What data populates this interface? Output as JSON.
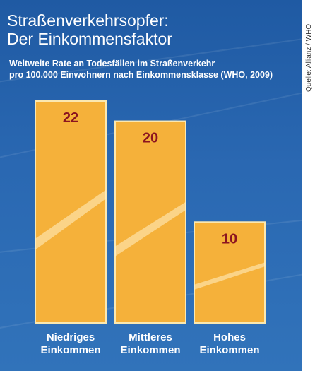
{
  "title": [
    "Straßenverkehrsopfer:",
    "Der Einkommensfaktor"
  ],
  "subtitle": [
    "Weltweite Rate an Todesfällen im Straßenverkehr",
    "pro 100.000 Einwohnern nach Einkommensklasse (WHO, 2009)"
  ],
  "source": "Quelle: Allianz / WHO",
  "colors": {
    "background": "#2a68b2",
    "bar": "#f5b13a",
    "bar_border": "#fbe8b0",
    "value_text": "#8b1420",
    "category_text": "#ffffff"
  },
  "chart_data": {
    "type": "bar",
    "categories": [
      [
        "Niedriges",
        "Einkommen"
      ],
      [
        "Mittleres",
        "Einkommen"
      ],
      [
        "Hohes",
        "Einkommen"
      ]
    ],
    "values": [
      22,
      20,
      10
    ],
    "ylim": [
      0,
      22
    ],
    "grid": false
  }
}
